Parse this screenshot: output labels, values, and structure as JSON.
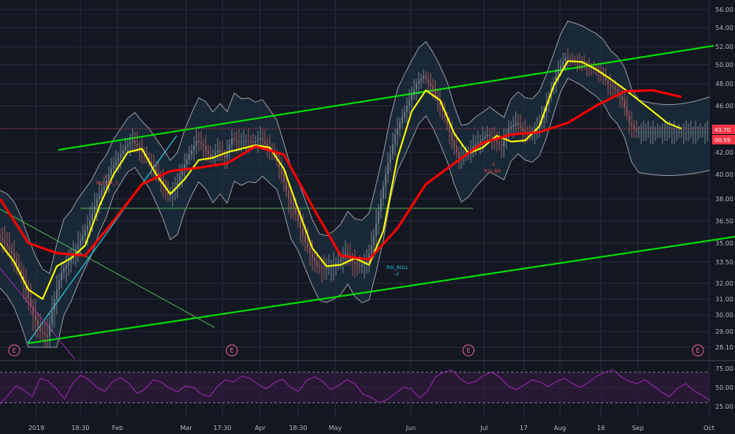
{
  "chart_data": [
    {
      "type": "candlestick",
      "ylim": [
        28.1,
        56.0
      ],
      "y_ticks": [
        "56.00",
        "54.00",
        "52.00",
        "50.00",
        "48.00",
        "46.00",
        "44.00",
        "42.00",
        "40.00",
        "38.00",
        "36.50",
        "35.00",
        "33.50",
        "32.00",
        "31.00",
        "30.00",
        "29.00",
        "28.10"
      ],
      "x_ticks": [
        "2019",
        "18:30",
        "Feb",
        "Mar",
        "17:30",
        "Apr",
        "18:30",
        "May",
        "Jun",
        "Jul",
        "17",
        "Aug",
        "16",
        "Sep",
        "Oct"
      ],
      "last_price": "43.70",
      "countdown": "00:59",
      "annotations": {
        "rsi_bull_1": "RSI_BR_S",
        "rsi_bull_1_num": "-2",
        "rsi_bear_1": "RSI_BULL",
        "rsi_bear_1_num": "-2",
        "rsi_br_2": "RSI_BR",
        "rsi_br_2_num": "-2"
      },
      "earnings_markers": [
        "E",
        "E",
        "E",
        "E"
      ],
      "series": [
        {
          "name": "price",
          "color": "#b2b5be",
          "x": [
            0,
            3,
            6,
            9,
            12,
            15,
            18,
            21,
            24,
            27,
            30,
            33,
            36,
            39,
            42,
            45,
            48,
            51,
            54,
            57,
            60,
            63,
            66,
            69,
            72,
            75,
            78,
            81,
            84,
            87,
            90,
            93,
            96,
            99,
            102,
            105,
            108,
            111,
            114,
            117,
            120,
            123,
            126,
            129,
            132,
            135,
            138,
            141,
            144,
            147,
            150,
            153,
            156,
            159,
            162,
            165,
            168,
            171,
            174,
            177,
            180,
            183,
            186,
            189,
            192,
            195,
            198,
            201,
            204,
            207,
            210,
            213,
            216,
            219,
            222,
            225,
            228,
            231,
            234,
            237,
            240,
            243,
            246,
            249,
            252,
            255,
            258,
            261,
            264,
            267,
            270,
            273,
            276,
            279,
            282,
            285,
            288,
            291,
            294,
            297,
            300
          ],
          "values": [
            35.5,
            35.0,
            34.2,
            33.0,
            31.5,
            30.0,
            29.0,
            28.7,
            31.0,
            32.8,
            33.5,
            34.5,
            35.5,
            36.5,
            38.0,
            39.0,
            40.5,
            41.5,
            42.5,
            43.0,
            42.2,
            41.5,
            40.5,
            39.5,
            38.3,
            38.8,
            40.5,
            41.8,
            43.0,
            42.5,
            41.5,
            42.2,
            41.5,
            43.2,
            42.8,
            43.0,
            42.8,
            43.2,
            42.5,
            41.8,
            40.0,
            38.0,
            37.0,
            35.5,
            34.2,
            33.2,
            33.0,
            33.2,
            33.5,
            34.2,
            33.5,
            33.2,
            33.5,
            35.5,
            38.0,
            41.0,
            43.5,
            45.0,
            46.5,
            48.0,
            48.8,
            47.8,
            46.5,
            45.0,
            43.0,
            41.5,
            41.8,
            42.5,
            43.0,
            43.5,
            43.0,
            42.5,
            44.0,
            44.5,
            43.8,
            43.5,
            44.0,
            45.5,
            47.5,
            49.5,
            50.8,
            50.5,
            50.2,
            49.8,
            49.5,
            49.0,
            48.0,
            47.5,
            46.5,
            44.5,
            43.7,
            43.7,
            43.7,
            43.7,
            43.7,
            43.7,
            43.7,
            43.7,
            43.7,
            43.7,
            43.7
          ]
        },
        {
          "name": "ma_fast",
          "color": "#ffff00",
          "x": [
            0,
            6,
            12,
            18,
            24,
            30,
            36,
            42,
            48,
            54,
            60,
            66,
            72,
            78,
            84,
            90,
            96,
            102,
            108,
            114,
            120,
            126,
            132,
            138,
            144,
            150,
            156,
            162,
            168,
            174,
            180,
            186,
            192,
            198,
            204,
            210,
            216,
            222,
            228,
            234,
            240,
            246,
            252,
            258,
            264,
            270,
            276,
            282,
            288
          ],
          "values": [
            35.0,
            33.5,
            31.6,
            31.0,
            33.2,
            33.8,
            34.8,
            37.5,
            40.0,
            42.0,
            42.3,
            40.0,
            38.4,
            39.6,
            41.3,
            41.5,
            42.0,
            42.3,
            42.6,
            42.4,
            40.5,
            37.3,
            34.6,
            33.2,
            33.3,
            33.8,
            33.3,
            35.8,
            41.5,
            45.5,
            47.4,
            46.5,
            43.6,
            41.9,
            42.4,
            43.4,
            42.9,
            43.0,
            44.2,
            47.8,
            50.4,
            50.3,
            49.5,
            48.5,
            47.5,
            46.5,
            45.5,
            44.5,
            44.0
          ]
        },
        {
          "name": "ma_slow",
          "color": "#ff0000",
          "x": [
            0,
            12,
            24,
            36,
            48,
            60,
            72,
            84,
            96,
            108,
            120,
            132,
            144,
            156,
            168,
            180,
            192,
            204,
            216,
            228,
            240,
            252,
            264,
            276,
            288
          ],
          "values": [
            38.0,
            35.0,
            34.2,
            34.0,
            36.5,
            39.2,
            40.3,
            40.6,
            41.0,
            42.5,
            41.8,
            37.5,
            34.0,
            33.7,
            36.0,
            39.2,
            41.0,
            42.8,
            43.5,
            43.7,
            44.5,
            46.0,
            47.3,
            47.4,
            46.8
          ]
        }
      ]
    },
    {
      "type": "line",
      "name": "RSI",
      "ylim": [
        20,
        80
      ],
      "y_ticks": [
        "75.00",
        "50.00",
        "25.00"
      ],
      "values": [
        28,
        40,
        52,
        46,
        38,
        62,
        58,
        48,
        35,
        55,
        66,
        60,
        50,
        45,
        58,
        63,
        55,
        42,
        48,
        60,
        57,
        49,
        44,
        52,
        50,
        41,
        38,
        52,
        60,
        57,
        65,
        62,
        54,
        48,
        56,
        61,
        50,
        45,
        59,
        64,
        58,
        47,
        53,
        60,
        55,
        41,
        37,
        30,
        34,
        42,
        50,
        48,
        36,
        45,
        64,
        70,
        73,
        62,
        55,
        58,
        66,
        70,
        63,
        52,
        47,
        53,
        60,
        57,
        51,
        58,
        62,
        55,
        50,
        57,
        65,
        70,
        73,
        64,
        58,
        55,
        60,
        52,
        44,
        38,
        49,
        55,
        46,
        40,
        33
      ]
    }
  ],
  "colors": {
    "background": "#131722",
    "grid": "#2a2e39",
    "channel": "#00e600",
    "bands": "#9598a1",
    "band_fill": "#1e3345",
    "ma_fast": "#ffff00",
    "ma_slow": "#ff0000",
    "price_label": "#f23645",
    "countdown_label": "#f23645",
    "earnings": "#f06292",
    "rsi_line": "#9c27b0",
    "rsi_bg": "#311b3c",
    "trendline": "#26c6da",
    "horizontal": "#4caf50"
  }
}
